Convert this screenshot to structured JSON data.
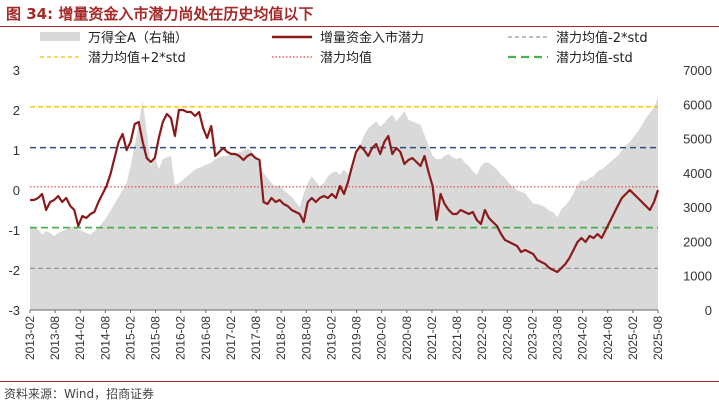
{
  "header": {
    "title": "图 34:  增量资金入市潜力尚处在历史均值以下"
  },
  "footer": {
    "source": "资料来源：Wind，招商证券"
  },
  "chart_data": {
    "type": "line",
    "x_ticks": [
      "2013-02",
      "2013-08",
      "2014-02",
      "2014-08",
      "2015-02",
      "2015-08",
      "2016-02",
      "2016-08",
      "2017-02",
      "2017-08",
      "2018-02",
      "2018-08",
      "2019-02",
      "2019-08",
      "2020-02",
      "2020-08",
      "2021-02",
      "2021-08",
      "2022-02",
      "2022-08",
      "2023-02",
      "2023-08",
      "2024-02",
      "2024-08",
      "2025-02",
      "2025-08"
    ],
    "y_left": {
      "ticks": [
        3,
        2,
        1,
        0,
        -1,
        -2,
        -3
      ],
      "range": [
        -3,
        3
      ]
    },
    "y_right": {
      "ticks": [
        7000,
        6000,
        5000,
        4000,
        3000,
        2000,
        1000,
        0
      ],
      "range": [
        0,
        7000
      ]
    },
    "legend": [
      {
        "label": "万得全A（右轴）",
        "type": "area",
        "color": "#d9d9d9"
      },
      {
        "label": "增量资金入市潜力",
        "type": "line",
        "color": "#8b1a1a"
      },
      {
        "label": "潜力均值-2*std",
        "type": "dash",
        "color": "#999999"
      },
      {
        "label": "潜力均值+2*std",
        "type": "dash",
        "color": "#f5c400"
      },
      {
        "label": "潜力均值",
        "type": "dot",
        "color": "#e04040"
      },
      {
        "label": "潜力均值-std",
        "type": "dash",
        "color": "#4caf50"
      }
    ],
    "reference_lines": {
      "plus_2std": 2.08,
      "plus_std": 1.06,
      "mean": 0.08,
      "minus_std": -0.94,
      "minus_2std": -1.96,
      "colors": {
        "plus_2std": "#f5c400",
        "plus_std": "#2b4e7e",
        "mean": "#e04040",
        "minus_std": "#4caf50",
        "minus_2std": "#999999"
      }
    },
    "series": [
      {
        "name": "万得全A（右轴）",
        "axis": "right",
        "x": [
          0,
          1,
          2,
          3,
          4,
          5,
          6,
          7,
          8,
          9,
          10,
          11,
          12,
          13,
          14,
          15,
          16,
          17,
          18,
          19,
          20,
          21,
          22,
          23,
          24,
          25,
          26,
          27,
          28,
          29,
          30,
          31,
          32,
          33,
          34,
          35,
          36,
          37,
          38,
          39,
          40,
          41,
          42,
          43,
          44,
          45,
          46,
          47,
          48,
          49,
          50,
          51,
          52,
          53,
          54,
          55,
          56,
          57,
          58,
          59,
          60,
          61,
          62,
          63,
          64,
          65,
          66,
          67,
          68,
          69,
          70,
          71,
          72,
          73,
          74,
          75,
          76,
          77,
          78,
          79,
          80,
          81,
          82,
          83,
          84,
          85,
          86,
          87,
          88,
          89,
          90,
          91,
          92,
          93,
          94,
          95,
          96,
          97,
          98,
          99,
          100,
          101,
          102,
          103,
          104,
          105,
          106,
          107,
          108,
          109,
          110,
          111,
          112,
          113,
          114,
          115,
          116,
          117,
          118,
          119,
          120,
          121,
          122,
          123,
          124,
          125,
          126,
          127,
          128,
          129,
          130,
          131,
          132,
          133,
          134,
          135,
          136,
          137,
          138,
          139,
          140,
          141,
          142,
          143,
          144,
          145,
          146,
          147,
          148,
          149,
          150,
          151,
          152,
          153,
          154,
          155,
          156
        ],
        "values": [
          2450,
          2400,
          2350,
          2200,
          2300,
          2250,
          2150,
          2250,
          2300,
          2350,
          2400,
          2450,
          2350,
          2300,
          2250,
          2200,
          2300,
          2400,
          2550,
          2700,
          2900,
          3100,
          3300,
          3500,
          3700,
          4200,
          4800,
          5400,
          6100,
          5200,
          4200,
          4500,
          4100,
          4400,
          4450,
          4500,
          3650,
          3700,
          3800,
          3900,
          4000,
          4100,
          4150,
          4200,
          4250,
          4300,
          4400,
          4450,
          4500,
          4500,
          4550,
          4550,
          4600,
          4650,
          4700,
          4650,
          4400,
          4300,
          4000,
          3850,
          3700,
          3600,
          3650,
          3500,
          3400,
          3300,
          3150,
          3000,
          3400,
          3700,
          3900,
          3750,
          3600,
          3700,
          3900,
          4000,
          4050,
          3950,
          4100,
          3950,
          4200,
          4500,
          4800,
          5100,
          5300,
          5400,
          5500,
          5350,
          5450,
          5600,
          5700,
          5500,
          5650,
          5800,
          5550,
          5500,
          5450,
          5400,
          5100,
          4800,
          4500,
          4400,
          4400,
          4500,
          4550,
          4450,
          4400,
          4450,
          4300,
          4200,
          4050,
          3950,
          4200,
          4300,
          4300,
          4200,
          4100,
          3950,
          3850,
          3700,
          3600,
          3500,
          3450,
          3400,
          3250,
          3100,
          3100,
          3050,
          3000,
          2900,
          2850,
          2700,
          2950,
          3050,
          3200,
          3400,
          3650,
          3800,
          3750,
          3850,
          3900,
          4050,
          4100,
          4200,
          4300,
          4400,
          4500,
          4650,
          4800,
          4900,
          5050,
          5200,
          5400,
          5600,
          5750,
          5900,
          6200
        ]
      },
      {
        "name": "增量资金入市潜力",
        "axis": "left",
        "x": [
          0,
          1,
          2,
          3,
          4,
          5,
          6,
          7,
          8,
          9,
          10,
          11,
          12,
          13,
          14,
          15,
          16,
          17,
          18,
          19,
          20,
          21,
          22,
          23,
          24,
          25,
          26,
          27,
          28,
          29,
          30,
          31,
          32,
          33,
          34,
          35,
          36,
          37,
          38,
          39,
          40,
          41,
          42,
          43,
          44,
          45,
          46,
          47,
          48,
          49,
          50,
          51,
          52,
          53,
          54,
          55,
          56,
          57,
          58,
          59,
          60,
          61,
          62,
          63,
          64,
          65,
          66,
          67,
          68,
          69,
          70,
          71,
          72,
          73,
          74,
          75,
          76,
          77,
          78,
          79,
          80,
          81,
          82,
          83,
          84,
          85,
          86,
          87,
          88,
          89,
          90,
          91,
          92,
          93,
          94,
          95,
          96,
          97,
          98,
          99,
          100,
          101,
          102,
          103,
          104,
          105,
          106,
          107,
          108,
          109,
          110,
          111,
          112,
          113,
          114,
          115,
          116,
          117,
          118,
          119,
          120,
          121,
          122,
          123,
          124,
          125,
          126,
          127,
          128,
          129,
          130,
          131,
          132,
          133,
          134,
          135,
          136,
          137,
          138,
          139,
          140,
          141,
          142,
          143,
          144,
          145,
          146,
          147,
          148,
          149,
          150,
          151,
          152,
          153,
          154,
          155,
          156
        ],
        "values": [
          -0.25,
          -0.25,
          -0.2,
          -0.1,
          -0.5,
          -0.3,
          -0.25,
          -0.15,
          -0.3,
          -0.2,
          -0.4,
          -0.5,
          -0.9,
          -0.65,
          -0.7,
          -0.6,
          -0.55,
          -0.3,
          -0.1,
          0.1,
          0.4,
          0.8,
          1.2,
          1.4,
          1.0,
          1.2,
          1.65,
          1.7,
          1.2,
          0.8,
          0.7,
          0.8,
          1.3,
          1.7,
          1.9,
          1.8,
          1.35,
          2.0,
          2.0,
          1.95,
          1.95,
          1.85,
          1.95,
          1.55,
          1.3,
          1.6,
          0.85,
          0.95,
          1.05,
          0.95,
          0.9,
          0.9,
          0.85,
          0.75,
          0.85,
          0.9,
          0.8,
          0.75,
          -0.3,
          -0.35,
          -0.2,
          -0.3,
          -0.25,
          -0.35,
          -0.4,
          -0.5,
          -0.55,
          -0.6,
          -0.8,
          -0.3,
          -0.2,
          -0.3,
          -0.2,
          -0.15,
          -0.2,
          -0.1,
          -0.2,
          0.1,
          -0.1,
          0.2,
          0.6,
          0.95,
          1.1,
          1.0,
          0.85,
          1.05,
          1.15,
          0.9,
          1.2,
          1.35,
          0.9,
          1.05,
          0.95,
          0.65,
          0.75,
          0.8,
          0.7,
          0.6,
          0.85,
          0.45,
          0.1,
          -0.75,
          -0.1,
          -0.35,
          -0.5,
          -0.6,
          -0.6,
          -0.5,
          -0.55,
          -0.6,
          -0.55,
          -0.75,
          -0.85,
          -0.5,
          -0.7,
          -0.8,
          -0.9,
          -1.1,
          -1.25,
          -1.3,
          -1.35,
          -1.4,
          -1.55,
          -1.5,
          -1.55,
          -1.6,
          -1.75,
          -1.8,
          -1.85,
          -1.95,
          -2.0,
          -2.05,
          -1.95,
          -1.85,
          -1.7,
          -1.5,
          -1.3,
          -1.2,
          -1.3,
          -1.15,
          -1.2,
          -1.1,
          -1.2,
          -1.0,
          -0.8,
          -0.6,
          -0.4,
          -0.2,
          -0.1,
          0.0,
          -0.1,
          -0.2,
          -0.3,
          -0.4,
          -0.5,
          -0.3,
          0.0
        ]
      }
    ]
  }
}
